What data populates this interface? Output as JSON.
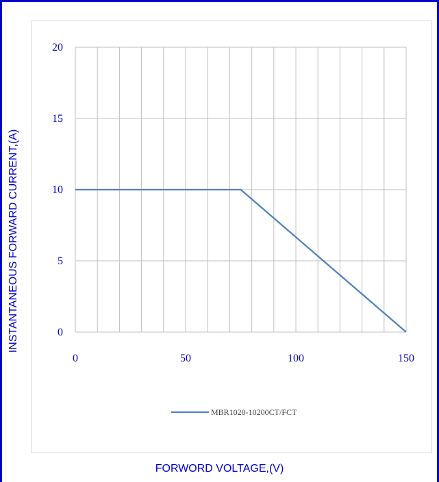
{
  "chart_data": {
    "type": "line",
    "title": "",
    "xlabel": "FORWORD VOLTAGE,(V)",
    "ylabel": "INSTANTANEOUS FORWARD CURRENT,(A)",
    "xlim": [
      0,
      150
    ],
    "ylim": [
      0,
      20
    ],
    "xticks": [
      0,
      50,
      100,
      150
    ],
    "yticks": [
      0,
      5,
      10,
      15,
      20
    ],
    "vertical_gridlines": [
      0,
      10,
      20,
      30,
      40,
      50,
      60,
      70,
      80,
      90,
      100,
      110,
      120,
      130,
      140,
      150
    ],
    "grid": true,
    "legend_position": "bottom",
    "colors": {
      "series": "#4f81bd",
      "axis_text": "#0000cc",
      "grid": "#bfbfbf",
      "border": "#0000cc"
    },
    "series": [
      {
        "name": "MBR1020-10200CT/FCT",
        "x": [
          0,
          75,
          150
        ],
        "y": [
          10,
          10,
          0
        ]
      }
    ]
  }
}
